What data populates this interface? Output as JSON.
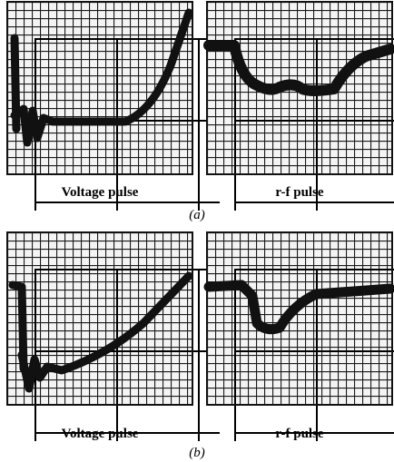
{
  "figure": {
    "rows": [
      {
        "label": "(a)",
        "panels": [
          {
            "caption": "Voltage pulse"
          },
          {
            "caption": "r-f pulse"
          }
        ]
      },
      {
        "label": "(b)",
        "panels": [
          {
            "caption": "Voltage pulse"
          },
          {
            "caption": "r-f pulse"
          }
        ]
      }
    ]
  }
}
